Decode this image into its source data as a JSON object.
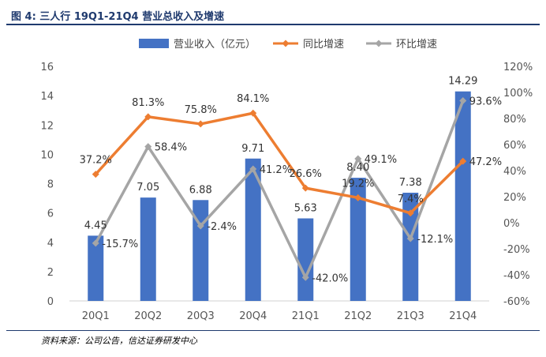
{
  "header": {
    "title": "图 4:  三人行 19Q1-21Q4 营业总收入及增速"
  },
  "footer": {
    "source": "资料来源：公司公告，信达证券研发中心"
  },
  "chart_data": {
    "type": "bar+line",
    "title": "三人行 19Q1-21Q4 营业总收入及增速",
    "categories": [
      "20Q1",
      "20Q2",
      "20Q3",
      "20Q4",
      "21Q1",
      "21Q2",
      "21Q3",
      "21Q4"
    ],
    "series": [
      {
        "name": "营业收入（亿元）",
        "type": "bar",
        "axis": "left",
        "color": "#4472c4",
        "values": [
          4.45,
          7.05,
          6.88,
          9.71,
          5.63,
          8.4,
          7.38,
          14.29
        ],
        "labels": [
          "4.45",
          "7.05",
          "6.88",
          "9.71",
          "5.63",
          "8.40",
          "7.38",
          "14.29"
        ]
      },
      {
        "name": "同比增速",
        "type": "line",
        "axis": "right",
        "color": "#ed7d31",
        "values": [
          37.2,
          81.3,
          75.8,
          84.1,
          26.6,
          19.2,
          7.4,
          47.2
        ],
        "labels": [
          "37.2%",
          "81.3%",
          "75.8%",
          "84.1%",
          "26.6%",
          "19.2%",
          "7.4%",
          "47.2%"
        ]
      },
      {
        "name": "环比增速",
        "type": "line",
        "axis": "right",
        "color": "#a5a5a5",
        "values": [
          -15.7,
          58.4,
          -2.4,
          41.2,
          -42.0,
          49.1,
          -12.1,
          93.6
        ],
        "labels": [
          "-15.7%",
          "58.4%",
          "-2.4%",
          "41.2%",
          "-42.0%",
          "49.1%",
          "-12.1%",
          "93.6%"
        ]
      }
    ],
    "y_left": {
      "min": 0,
      "max": 16,
      "ticks": [
        "0",
        "2",
        "4",
        "6",
        "8",
        "10",
        "12",
        "14",
        "16"
      ]
    },
    "y_right": {
      "min": -60,
      "max": 120,
      "ticks": [
        "-60%",
        "-40%",
        "-20%",
        "0%",
        "20%",
        "40%",
        "60%",
        "80%",
        "100%",
        "120%"
      ]
    },
    "grid": false,
    "legend_position": "top"
  }
}
